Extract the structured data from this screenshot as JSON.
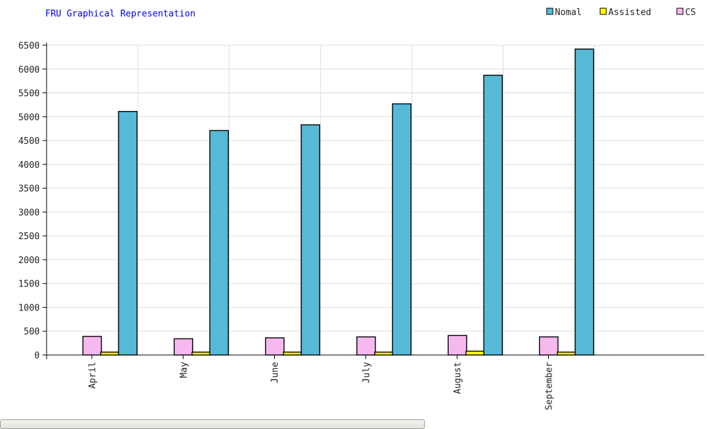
{
  "chart_data": {
    "type": "bar",
    "title": "FRU Graphical Representation",
    "categories": [
      "April",
      "May",
      "June",
      "July",
      "August",
      "September"
    ],
    "series": [
      {
        "name": "CS",
        "color": "#f5b8ef",
        "values": [
          390,
          340,
          360,
          380,
          410,
          380
        ]
      },
      {
        "name": "Assisted",
        "color": "#ffff00",
        "values": [
          60,
          60,
          60,
          60,
          80,
          60
        ]
      },
      {
        "name": "Nomal",
        "color": "#56b9d6",
        "values": [
          5110,
          4710,
          4830,
          5270,
          5870,
          6420
        ]
      }
    ],
    "legend_order": [
      "Nomal",
      "Assisted",
      "CS"
    ],
    "legend_position": "top-right",
    "ylim": [
      0,
      6500
    ],
    "yticks": [
      "0",
      "500",
      "1000",
      "1500",
      "2000",
      "2500",
      "3000",
      "3500",
      "4000",
      "4500",
      "5000",
      "5500",
      "6000",
      "6500"
    ],
    "grid": true,
    "title_color": "#0000ee"
  }
}
